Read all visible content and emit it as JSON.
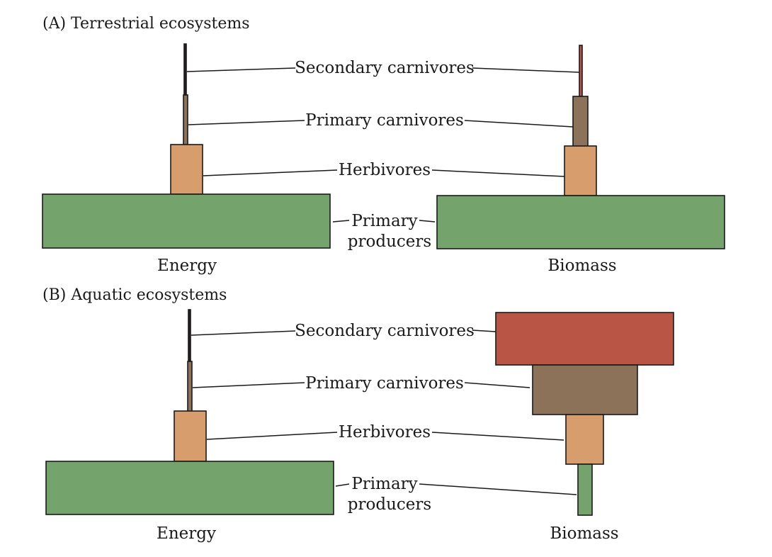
{
  "colors": {
    "primary_producers": "#74a36c",
    "herbivores": "#d89d6d",
    "primary_carnivores": "#8b7258",
    "secondary_carnivores_energy": "#2a1f1a",
    "secondary_carnivores_biomass_terrestrial": "#c4524a",
    "secondary_carnivores_biomass_aquatic": "#b85545",
    "outline": "#1a1a1a"
  },
  "panel_a": {
    "title": "(A)  Terrestrial ecosystems",
    "left_caption": "Energy",
    "right_caption": "Biomass",
    "labels": {
      "secondary": "Secondary carnivores",
      "primary_carn": "Primary carnivores",
      "herbivores": "Herbivores",
      "producers_1": "Primary",
      "producers_2": "producers"
    }
  },
  "panel_b": {
    "title": "(B)  Aquatic ecosystems",
    "left_caption": "Energy",
    "right_caption": "Biomass",
    "labels": {
      "secondary": "Secondary carnivores",
      "primary_carn": "Primary carnivores",
      "herbivores": "Herbivores",
      "producers_1": "Primary",
      "producers_2": "producers"
    }
  }
}
